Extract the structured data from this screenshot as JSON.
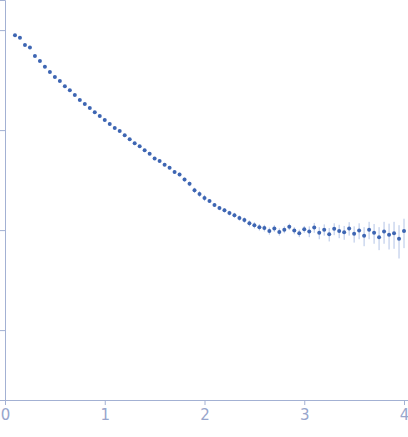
{
  "chart_data": {
    "type": "scatter",
    "color": "#3e66b3",
    "marker": "circle",
    "log": "y",
    "grid": false,
    "tick_labels": "x",
    "x": [
      0.1,
      0.15,
      0.2,
      0.25,
      0.3,
      0.35,
      0.4,
      0.45,
      0.5,
      0.55,
      0.6,
      0.65,
      0.7,
      0.75,
      0.8,
      0.85,
      0.9,
      0.95,
      1.0,
      1.05,
      1.1,
      1.15,
      1.2,
      1.25,
      1.3,
      1.35,
      1.4,
      1.45,
      1.5,
      1.55,
      1.6,
      1.65,
      1.7,
      1.75,
      1.8,
      1.85,
      1.9,
      1.95,
      2.0,
      2.05,
      2.1,
      2.15,
      2.2,
      2.25,
      2.3,
      2.35,
      2.4,
      2.45,
      2.5,
      2.55,
      2.6,
      2.65,
      2.7,
      2.75,
      2.8,
      2.85,
      2.9,
      2.95,
      3.0,
      3.05,
      3.1,
      3.15,
      3.2,
      3.25,
      3.3,
      3.35,
      3.4,
      3.45,
      3.5,
      3.55,
      3.6,
      3.65,
      3.7,
      3.75,
      3.8,
      3.85,
      3.9,
      3.95,
      4.0
    ],
    "values": [
      0.89,
      0.84,
      0.71,
      0.67,
      0.55,
      0.49,
      0.43,
      0.38,
      0.34,
      0.31,
      0.275,
      0.25,
      0.224,
      0.2,
      0.182,
      0.166,
      0.151,
      0.138,
      0.126,
      0.115,
      0.105,
      0.098,
      0.089,
      0.081,
      0.074,
      0.069,
      0.063,
      0.058,
      0.052,
      0.049,
      0.045,
      0.042,
      0.038,
      0.036,
      0.032,
      0.029,
      0.025,
      0.023,
      0.021,
      0.0195,
      0.0178,
      0.0166,
      0.0158,
      0.0148,
      0.0141,
      0.0132,
      0.0126,
      0.0117,
      0.0112,
      0.0107,
      0.0105,
      0.0098,
      0.0104,
      0.0096,
      0.0101,
      0.0108,
      0.0099,
      0.0093,
      0.0102,
      0.0097,
      0.0106,
      0.0094,
      0.0101,
      0.0091,
      0.0103,
      0.0098,
      0.0095,
      0.0104,
      0.0092,
      0.0099,
      0.0088,
      0.0101,
      0.0094,
      0.0085,
      0.0097,
      0.009,
      0.0093,
      0.0082,
      0.0098
    ],
    "errors": [
      0.004,
      0.004,
      0.004,
      0.004,
      0.004,
      0.004,
      0.004,
      0.004,
      0.004,
      0.004,
      0.004,
      0.004,
      0.004,
      0.004,
      0.004,
      0.004,
      0.004,
      0.004,
      0.004,
      0.004,
      0.0015,
      0.0015,
      0.0015,
      0.0015,
      0.0015,
      0.0015,
      0.0015,
      0.0015,
      0.0015,
      0.0015,
      0.0015,
      0.0015,
      0.0015,
      0.0015,
      0.0015,
      0.0015,
      0.0015,
      0.0015,
      0.0015,
      0.0008,
      0.0008,
      0.0008,
      0.0008,
      0.0008,
      0.0008,
      0.0008,
      0.0008,
      0.0008,
      0.0008,
      0.0008,
      0.0008,
      0.0008,
      0.0008,
      0.0008,
      0.0008,
      0.0008,
      0.0008,
      0.0008,
      0.0008,
      0.0012,
      0.0012,
      0.0013,
      0.0013,
      0.0014,
      0.0014,
      0.0015,
      0.0015,
      0.0016,
      0.0017,
      0.0018,
      0.0019,
      0.002,
      0.0021,
      0.0022,
      0.0024,
      0.0026,
      0.0028,
      0.003,
      0.0032
    ],
    "xlim": [
      0,
      4.04
    ],
    "xticks": [
      0,
      1,
      2,
      3,
      4
    ],
    "ylim": [
      0.0002,
      2
    ],
    "yticks": [
      0.001,
      0.01,
      0.1,
      1
    ]
  }
}
